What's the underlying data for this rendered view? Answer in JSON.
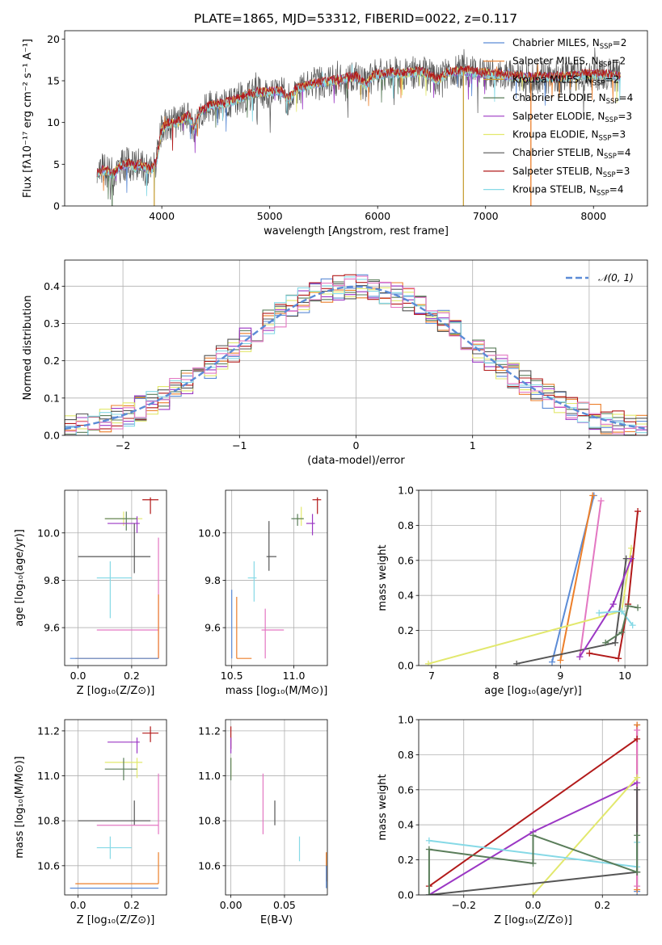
{
  "chart_data": [
    {
      "id": "spectrum",
      "type": "line",
      "title": "PLATE=1865, MJD=53312, FIBERID=0022, z=0.117",
      "xlabel": "wavelength [Angstrom, rest frame]",
      "ylabel": "Flux [fλ10⁻¹⁷ erg cm⁻² s⁻¹ A⁻¹]",
      "xlim": [
        3100,
        8500
      ],
      "ylim": [
        0,
        21
      ],
      "xticks": [
        4000,
        5000,
        6000,
        7000,
        8000
      ],
      "yticks": [
        0,
        5,
        10,
        15,
        20
      ],
      "grid": false,
      "legend_position": "right",
      "legend": [
        {
          "label": "Chabrier MILES, N",
          "sub": "SSP",
          "suffix": "=2",
          "color": "#5b8bd6"
        },
        {
          "label": "Salpeter MILES, N",
          "sub": "SSP",
          "suffix": "=2",
          "color": "#ec7f2a"
        },
        {
          "label": "Kroupa MILES, N",
          "sub": "SSP",
          "suffix": "=2",
          "color": "#c9a13a"
        },
        {
          "label": "Chabrier ELODIE, N",
          "sub": "SSP",
          "suffix": "=4",
          "color": "#5a7d5a"
        },
        {
          "label": "Salpeter ELODIE, N",
          "sub": "SSP",
          "suffix": "=3",
          "color": "#9b37c4"
        },
        {
          "label": "Kroupa ELODIE, N",
          "sub": "SSP",
          "suffix": "=3",
          "color": "#e2e86d"
        },
        {
          "label": "Chabrier STELIB, N",
          "sub": "SSP",
          "suffix": "=4",
          "color": "#555555"
        },
        {
          "label": "Salpeter STELIB, N",
          "sub": "SSP",
          "suffix": "=3",
          "color": "#b21a1a"
        },
        {
          "label": "Kroupa STELIB, N",
          "sub": "SSP",
          "suffix": "=4",
          "color": "#86d9e6"
        }
      ],
      "continuum": [
        [
          3400,
          3.8
        ],
        [
          3450,
          4.3
        ],
        [
          3500,
          4.1
        ],
        [
          3550,
          3.8
        ],
        [
          3600,
          4.6
        ],
        [
          3650,
          5.0
        ],
        [
          3700,
          5.1
        ],
        [
          3750,
          4.6
        ],
        [
          3800,
          5.0
        ],
        [
          3850,
          4.5
        ],
        [
          3900,
          4.3
        ],
        [
          3950,
          5.2
        ],
        [
          4000,
          9.2
        ],
        [
          4050,
          9.8
        ],
        [
          4100,
          9.9
        ],
        [
          4150,
          10.0
        ],
        [
          4200,
          10.5
        ],
        [
          4250,
          10.8
        ],
        [
          4300,
          9.3
        ],
        [
          4350,
          11.3
        ],
        [
          4400,
          11.6
        ],
        [
          4450,
          12.0
        ],
        [
          4500,
          12.1
        ],
        [
          4600,
          12.3
        ],
        [
          4700,
          12.8
        ],
        [
          4800,
          13.3
        ],
        [
          4900,
          13.6
        ],
        [
          5000,
          13.7
        ],
        [
          5100,
          13.8
        ],
        [
          5175,
          12.7
        ],
        [
          5250,
          14.1
        ],
        [
          5400,
          14.6
        ],
        [
          5500,
          14.8
        ],
        [
          5600,
          15.0
        ],
        [
          5700,
          15.3
        ],
        [
          5800,
          15.5
        ],
        [
          5893,
          14.4
        ],
        [
          5950,
          15.6
        ],
        [
          6100,
          15.9
        ],
        [
          6250,
          15.9
        ],
        [
          6400,
          16.1
        ],
        [
          6563,
          15.1
        ],
        [
          6650,
          16.0
        ],
        [
          6800,
          16.2
        ],
        [
          6900,
          16.0
        ],
        [
          7000,
          15.9
        ],
        [
          7200,
          15.6
        ],
        [
          7400,
          15.4
        ],
        [
          7600,
          15.4
        ],
        [
          7800,
          15.6
        ],
        [
          8000,
          15.8
        ],
        [
          8200,
          15.6
        ],
        [
          8250,
          15.5
        ]
      ],
      "spikes": [
        [
          3540,
          0,
          "#5a7d5a"
        ],
        [
          3930,
          0,
          "#c9a13a"
        ],
        [
          6795,
          0,
          "#c9a13a"
        ],
        [
          7420,
          0,
          "#ec7f2a"
        ]
      ]
    },
    {
      "id": "residuals",
      "type": "step-histogram",
      "xlabel": "(data-model)/error",
      "ylabel": "Normed distribution",
      "xlim": [
        -2.5,
        2.5
      ],
      "ylim": [
        0,
        0.47
      ],
      "xticks": [
        -2,
        -1,
        0,
        1,
        2
      ],
      "yticks": [
        0.0,
        0.1,
        0.2,
        0.3,
        0.4
      ],
      "grid": true,
      "legend_position": "top-right",
      "reference_curve": {
        "label": "𝒩(0, 1)",
        "color": "#5b8bd6",
        "style": "dashed"
      },
      "bin_width": 0.1,
      "envelope_note": "each series follows the N(0,1) envelope with bin-to-bin scatter",
      "series": [
        {
          "color": "#5b8bd6",
          "seed": 1
        },
        {
          "color": "#ec7f2a",
          "seed": 2
        },
        {
          "color": "#5a7d5a",
          "seed": 3
        },
        {
          "color": "#9b37c4",
          "seed": 4
        },
        {
          "color": "#e2e86d",
          "seed": 5
        },
        {
          "color": "#555555",
          "seed": 6
        },
        {
          "color": "#b21a1a",
          "seed": 7
        },
        {
          "color": "#86d9e6",
          "seed": 8
        },
        {
          "color": "#e377c2",
          "seed": 9
        }
      ]
    },
    {
      "id": "age_vs_Z",
      "type": "errorbar",
      "xlabel": "Z [log₁₀(Z/Z⊙)]",
      "ylabel": "age  [log₁₀(age/yr)]",
      "xlim": [
        -0.05,
        0.33
      ],
      "ylim": [
        9.44,
        10.18
      ],
      "xticks": [
        0.0,
        0.2
      ],
      "yticks": [
        9.6,
        9.8,
        10.0
      ],
      "grid": true,
      "points": [
        {
          "x": 0.27,
          "y": 10.14,
          "xlo": 0.24,
          "xhi": 0.3,
          "ylo": 10.08,
          "yhi": 10.15,
          "color": "#b21a1a"
        },
        {
          "x": 0.17,
          "y": 10.06,
          "xlo": 0.1,
          "xhi": 0.24,
          "ylo": 10.03,
          "yhi": 10.09,
          "color": "#e2e86d"
        },
        {
          "x": 0.18,
          "y": 10.06,
          "xlo": 0.1,
          "xhi": 0.22,
          "ylo": 10.01,
          "yhi": 10.09,
          "color": "#5a7d5a"
        },
        {
          "x": 0.22,
          "y": 10.04,
          "xlo": 0.11,
          "xhi": 0.23,
          "ylo": 10.0,
          "yhi": 10.07,
          "color": "#9b37c4"
        },
        {
          "x": 0.21,
          "y": 9.9,
          "xlo": -0.0,
          "xhi": 0.27,
          "ylo": 9.83,
          "yhi": 10.04,
          "color": "#555555"
        },
        {
          "x": 0.12,
          "y": 9.81,
          "xlo": 0.07,
          "xhi": 0.2,
          "ylo": 9.64,
          "yhi": 9.88,
          "color": "#86d9e6"
        },
        {
          "x": 0.3,
          "y": 9.59,
          "xlo": 0.07,
          "xhi": 0.3,
          "ylo": 9.47,
          "yhi": 9.98,
          "color": "#e377c2"
        },
        {
          "x": 0.3,
          "y": 9.47,
          "xlo": -0.01,
          "xhi": 0.3,
          "ylo": 9.47,
          "yhi": 9.74,
          "color": "#ec7f2a"
        },
        {
          "x": 0.3,
          "y": 9.47,
          "xlo": -0.03,
          "xhi": 0.3,
          "ylo": 9.47,
          "yhi": 9.47,
          "color": "#5b8bd6"
        }
      ]
    },
    {
      "id": "age_vs_mass",
      "type": "errorbar",
      "xlabel": "mass [log₁₀(M/M⊙)]",
      "ylabel": "",
      "xlim": [
        10.45,
        11.27
      ],
      "ylim": [
        9.44,
        10.18
      ],
      "xticks": [
        10.5,
        11.0
      ],
      "yticks": [
        9.6,
        9.8,
        10.0
      ],
      "grid": true,
      "points": [
        {
          "x": 11.19,
          "y": 10.14,
          "xlo": 11.15,
          "xhi": 11.22,
          "ylo": 10.08,
          "yhi": 10.15,
          "color": "#b21a1a"
        },
        {
          "x": 11.06,
          "y": 10.06,
          "xlo": 11.02,
          "xhi": 11.08,
          "ylo": 10.03,
          "yhi": 10.11,
          "color": "#e2e86d"
        },
        {
          "x": 11.03,
          "y": 10.06,
          "xlo": 10.98,
          "xhi": 11.08,
          "ylo": 10.03,
          "yhi": 10.08,
          "color": "#5a7d5a"
        },
        {
          "x": 11.15,
          "y": 10.04,
          "xlo": 11.1,
          "xhi": 11.17,
          "ylo": 9.99,
          "yhi": 10.08,
          "color": "#9b37c4"
        },
        {
          "x": 10.8,
          "y": 9.9,
          "xlo": 10.78,
          "xhi": 10.86,
          "ylo": 9.84,
          "yhi": 10.05,
          "color": "#555555"
        },
        {
          "x": 10.68,
          "y": 9.81,
          "xlo": 10.63,
          "xhi": 10.7,
          "ylo": 9.71,
          "yhi": 9.88,
          "color": "#86d9e6"
        },
        {
          "x": 10.77,
          "y": 9.59,
          "xlo": 10.74,
          "xhi": 10.92,
          "ylo": 9.47,
          "yhi": 9.68,
          "color": "#e377c2"
        },
        {
          "x": 10.54,
          "y": 9.47,
          "xlo": 10.54,
          "xhi": 10.66,
          "ylo": 9.47,
          "yhi": 9.73,
          "color": "#ec7f2a"
        },
        {
          "x": 10.5,
          "y": 9.47,
          "xlo": 10.5,
          "xhi": 10.5,
          "ylo": 9.47,
          "yhi": 9.76,
          "color": "#5b8bd6"
        }
      ]
    },
    {
      "id": "weight_vs_age",
      "type": "line",
      "xlabel": "age  [log₁₀(age/yr)]",
      "ylabel": "mass weight",
      "xlim": [
        6.8,
        10.35
      ],
      "ylim": [
        0,
        1.0
      ],
      "xticks": [
        7,
        8,
        9,
        10
      ],
      "yticks": [
        0.0,
        0.2,
        0.4,
        0.6,
        0.8,
        1.0
      ],
      "grid": true,
      "series": [
        {
          "color": "#5b8bd6",
          "x": [
            8.87,
            9.52
          ],
          "y": [
            0.02,
            0.97
          ]
        },
        {
          "color": "#ec7f2a",
          "x": [
            9.0,
            9.5
          ],
          "y": [
            0.03,
            0.97
          ]
        },
        {
          "color": "#e377c2",
          "x": [
            9.3,
            9.63
          ],
          "y": [
            0.05,
            0.94
          ]
        },
        {
          "color": "#e2e86d",
          "x": [
            6.95,
            9.95,
            10.1
          ],
          "y": [
            0.01,
            0.31,
            0.67
          ]
        },
        {
          "color": "#555555",
          "x": [
            8.32,
            9.85,
            10.02
          ],
          "y": [
            0.01,
            0.13,
            0.61
          ]
        },
        {
          "color": "#b21a1a",
          "x": [
            9.45,
            9.9,
            10.05,
            10.2
          ],
          "y": [
            0.07,
            0.04,
            0.35,
            0.88
          ]
        },
        {
          "color": "#9b37c4",
          "x": [
            9.3,
            9.82,
            10.1
          ],
          "y": [
            0.05,
            0.35,
            0.61
          ]
        },
        {
          "color": "#86d9e6",
          "x": [
            9.6,
            9.95,
            10.12
          ],
          "y": [
            0.3,
            0.31,
            0.23
          ]
        },
        {
          "color": "#5a7d5a",
          "x": [
            9.7,
            9.95,
            10.05,
            10.2
          ],
          "y": [
            0.13,
            0.19,
            0.34,
            0.33
          ]
        }
      ]
    },
    {
      "id": "mass_vs_Z",
      "type": "errorbar",
      "xlabel": "Z [log₁₀(Z/Z⊙)]",
      "ylabel": "mass [log₁₀(M/M⊙)]",
      "xlim": [
        -0.05,
        0.33
      ],
      "ylim": [
        10.47,
        11.25
      ],
      "xticks": [
        0.0,
        0.2
      ],
      "yticks": [
        10.6,
        10.8,
        11.0,
        11.2
      ],
      "grid": true,
      "points": [
        {
          "x": 0.27,
          "y": 11.19,
          "xlo": 0.24,
          "xhi": 0.3,
          "ylo": 11.15,
          "yhi": 11.22,
          "color": "#b21a1a"
        },
        {
          "x": 0.22,
          "y": 11.15,
          "xlo": 0.11,
          "xhi": 0.23,
          "ylo": 11.1,
          "yhi": 11.17,
          "color": "#9b37c4"
        },
        {
          "x": 0.22,
          "y": 11.06,
          "xlo": 0.1,
          "xhi": 0.24,
          "ylo": 10.99,
          "yhi": 11.08,
          "color": "#e2e86d"
        },
        {
          "x": 0.17,
          "y": 11.03,
          "xlo": 0.1,
          "xhi": 0.22,
          "ylo": 10.98,
          "yhi": 11.08,
          "color": "#5a7d5a"
        },
        {
          "x": 0.21,
          "y": 10.8,
          "xlo": -0.0,
          "xhi": 0.27,
          "ylo": 10.78,
          "yhi": 10.89,
          "color": "#555555"
        },
        {
          "x": 0.3,
          "y": 10.78,
          "xlo": 0.07,
          "xhi": 0.3,
          "ylo": 10.74,
          "yhi": 11.01,
          "color": "#e377c2"
        },
        {
          "x": 0.12,
          "y": 10.68,
          "xlo": 0.07,
          "xhi": 0.2,
          "ylo": 10.63,
          "yhi": 10.73,
          "color": "#86d9e6"
        },
        {
          "x": 0.3,
          "y": 10.52,
          "xlo": -0.01,
          "xhi": 0.3,
          "ylo": 10.52,
          "yhi": 10.66,
          "color": "#ec7f2a"
        },
        {
          "x": 0.3,
          "y": 10.5,
          "xlo": -0.03,
          "xhi": 0.3,
          "ylo": 10.5,
          "yhi": 10.5,
          "color": "#5b8bd6"
        }
      ]
    },
    {
      "id": "mass_vs_EBV",
      "type": "errorbar",
      "xlabel": "E(B-V)",
      "ylabel": "",
      "xlim": [
        -0.005,
        0.09
      ],
      "ylim": [
        10.47,
        11.25
      ],
      "xticks": [
        0.0,
        0.05
      ],
      "yticks": [
        10.6,
        10.8,
        11.0,
        11.2
      ],
      "grid": true,
      "points": [
        {
          "x": 0.0,
          "y": 11.17,
          "xlo": 0.0,
          "xhi": 0.0,
          "ylo": 11.12,
          "yhi": 11.22,
          "color": "#b21a1a"
        },
        {
          "x": 0.0,
          "y": 11.14,
          "xlo": 0.0,
          "xhi": 0.0,
          "ylo": 11.1,
          "yhi": 11.17,
          "color": "#9b37c4"
        },
        {
          "x": 0.0,
          "y": 11.06,
          "xlo": 0.0,
          "xhi": 0.0,
          "ylo": 10.99,
          "yhi": 11.08,
          "color": "#e2e86d"
        },
        {
          "x": 0.0,
          "y": 11.03,
          "xlo": 0.0,
          "xhi": 0.0,
          "ylo": 10.98,
          "yhi": 11.08,
          "color": "#5a7d5a"
        },
        {
          "x": 0.03,
          "y": 10.87,
          "xlo": 0.03,
          "xhi": 0.03,
          "ylo": 10.74,
          "yhi": 11.01,
          "color": "#e377c2"
        },
        {
          "x": 0.041,
          "y": 10.83,
          "xlo": 0.041,
          "xhi": 0.041,
          "ylo": 10.78,
          "yhi": 10.89,
          "color": "#555555"
        },
        {
          "x": 0.064,
          "y": 10.68,
          "xlo": 0.064,
          "xhi": 0.064,
          "ylo": 10.62,
          "yhi": 10.73,
          "color": "#86d9e6"
        },
        {
          "x": 0.089,
          "y": 10.6,
          "xlo": 0.089,
          "xhi": 0.089,
          "ylo": 10.53,
          "yhi": 10.66,
          "color": "#ec7f2a"
        },
        {
          "x": 0.089,
          "y": 10.55,
          "xlo": 0.089,
          "xhi": 0.089,
          "ylo": 10.5,
          "yhi": 10.6,
          "color": "#5b8bd6"
        }
      ]
    },
    {
      "id": "weight_vs_Z",
      "type": "line",
      "xlabel": "Z [log₁₀(Z/Z⊙)]",
      "ylabel": "mass weight",
      "xlim": [
        -0.33,
        0.33
      ],
      "ylim": [
        0,
        1.0
      ],
      "xticks": [
        -0.2,
        0.0,
        0.2
      ],
      "yticks": [
        0.0,
        0.2,
        0.4,
        0.6,
        0.8,
        1.0
      ],
      "grid": true,
      "series": [
        {
          "color": "#5b8bd6",
          "x": [
            0.3,
            0.3
          ],
          "y": [
            0.02,
            0.97
          ]
        },
        {
          "color": "#ec7f2a",
          "x": [
            0.3,
            0.3
          ],
          "y": [
            0.03,
            0.97
          ]
        },
        {
          "color": "#e377c2",
          "x": [
            0.3,
            0.3
          ],
          "y": [
            0.05,
            0.94
          ]
        },
        {
          "color": "#b21a1a",
          "x": [
            -0.3,
            0.3
          ],
          "y": [
            0.05,
            0.89
          ]
        },
        {
          "color": "#9b37c4",
          "x": [
            -0.3,
            0.0,
            0.3
          ],
          "y": [
            0.0,
            0.36,
            0.64
          ]
        },
        {
          "color": "#e2e86d",
          "x": [
            0.0,
            0.3
          ],
          "y": [
            0.0,
            0.67
          ]
        },
        {
          "color": "#555555",
          "x": [
            -0.3,
            0.3,
            0.3,
            0.3
          ],
          "y": [
            0.0,
            0.13,
            0.6,
            0.13
          ]
        },
        {
          "color": "#86d9e6",
          "x": [
            -0.3,
            0.3,
            0.3
          ],
          "y": [
            0.31,
            0.16,
            0.3
          ]
        },
        {
          "color": "#5a7d5a",
          "x": [
            -0.3,
            -0.3,
            0.0,
            0.0,
            0.3,
            0.3
          ],
          "y": [
            0.0,
            0.26,
            0.18,
            0.34,
            0.13,
            0.34
          ]
        }
      ]
    }
  ]
}
